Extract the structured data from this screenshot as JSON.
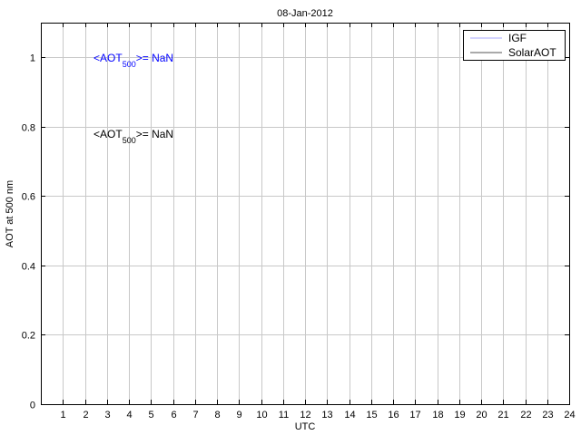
{
  "chart_data": {
    "type": "line",
    "title": "08-Jan-2012",
    "xlabel": "UTC",
    "ylabel": "AOT at 500 nm",
    "xlim": [
      0,
      24
    ],
    "ylim": [
      0,
      1.1
    ],
    "xticks": [
      1,
      2,
      3,
      4,
      5,
      6,
      7,
      8,
      9,
      10,
      11,
      12,
      13,
      14,
      15,
      16,
      17,
      18,
      19,
      20,
      21,
      22,
      23,
      24
    ],
    "yticks": [
      0,
      0.2,
      0.4,
      0.6,
      0.8,
      1
    ],
    "ytick_labels": [
      "0",
      "0.2",
      "0.4",
      "0.6",
      "0.8",
      "1"
    ],
    "grid": true,
    "legend_position": "top-right",
    "series": [
      {
        "name": "IGF",
        "color": "#a8a8ff",
        "x": [],
        "y": []
      },
      {
        "name": "SolarAOT",
        "color": "#555555",
        "x": [],
        "y": []
      }
    ],
    "annotations": [
      {
        "prefix": "<AOT",
        "subscript": "500",
        "suffix": ">=  NaN",
        "color": "#0000ff"
      },
      {
        "prefix": "<AOT",
        "subscript": "500",
        "suffix": ">=  NaN",
        "color": "#000000"
      }
    ]
  }
}
